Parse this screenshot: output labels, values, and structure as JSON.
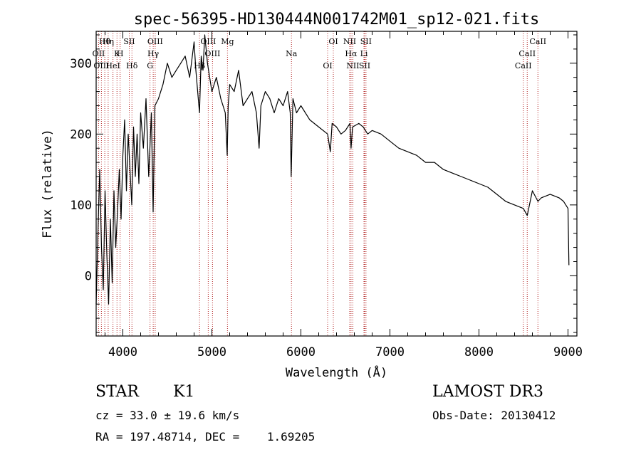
{
  "chart_data": {
    "type": "line",
    "title": "spec-56395-HD130444N001742M01_sp12-021.fits",
    "xlabel": "Wavelength (Å)",
    "ylabel": "Flux (relative)",
    "xlim": [
      3700,
      9100
    ],
    "ylim": [
      -85,
      345
    ],
    "xticks": [
      4000,
      5000,
      6000,
      7000,
      8000,
      9000
    ],
    "yticks": [
      0,
      100,
      200,
      300
    ],
    "series": [
      {
        "name": "flux",
        "x": [
          3700,
          3720,
          3740,
          3760,
          3780,
          3800,
          3820,
          3840,
          3860,
          3880,
          3900,
          3920,
          3940,
          3960,
          3980,
          4000,
          4020,
          4040,
          4060,
          4080,
          4100,
          4120,
          4140,
          4160,
          4180,
          4200,
          4230,
          4260,
          4290,
          4320,
          4340,
          4360,
          4400,
          4450,
          4500,
          4550,
          4600,
          4650,
          4700,
          4750,
          4800,
          4820,
          4861,
          4880,
          4900,
          4920,
          4950,
          5000,
          5050,
          5100,
          5150,
          5172,
          5183,
          5200,
          5250,
          5300,
          5350,
          5400,
          5450,
          5500,
          5530,
          5550,
          5600,
          5650,
          5700,
          5750,
          5800,
          5850,
          5880,
          5890,
          5896,
          5910,
          5950,
          6000,
          6100,
          6200,
          6300,
          6330,
          6350,
          6400,
          6450,
          6500,
          6550,
          6563,
          6580,
          6650,
          6700,
          6750,
          6800,
          6900,
          7000,
          7100,
          7200,
          7300,
          7400,
          7500,
          7600,
          7700,
          7800,
          7900,
          8000,
          8100,
          8200,
          8300,
          8400,
          8498,
          8542,
          8600,
          8662,
          8700,
          8800,
          8900,
          8950,
          9000,
          9010
        ],
        "values": [
          -40,
          60,
          150,
          40,
          -20,
          120,
          30,
          -40,
          80,
          -10,
          120,
          40,
          90,
          150,
          80,
          170,
          220,
          120,
          200,
          150,
          100,
          210,
          140,
          200,
          130,
          230,
          180,
          250,
          140,
          230,
          90,
          240,
          250,
          270,
          300,
          280,
          290,
          300,
          310,
          280,
          330,
          290,
          230,
          310,
          290,
          340,
          300,
          260,
          280,
          250,
          230,
          170,
          240,
          270,
          260,
          290,
          240,
          250,
          260,
          230,
          180,
          240,
          260,
          250,
          230,
          250,
          240,
          260,
          230,
          140,
          170,
          250,
          230,
          240,
          220,
          210,
          200,
          175,
          215,
          210,
          200,
          205,
          215,
          180,
          210,
          215,
          210,
          200,
          205,
          200,
          190,
          180,
          175,
          170,
          160,
          160,
          150,
          145,
          140,
          135,
          130,
          125,
          115,
          105,
          100,
          95,
          85,
          120,
          105,
          110,
          115,
          110,
          105,
          95,
          15
        ]
      }
    ],
    "annotations": [
      {
        "label": "Hθ",
        "wavelength": 3797
      },
      {
        "label": "OII",
        "wavelength": 3727
      },
      {
        "label": "OIII",
        "wavelength": 3759
      },
      {
        "label": "Hη",
        "wavelength": 3835
      },
      {
        "label": "K",
        "wavelength": 3934
      },
      {
        "label": "HeI",
        "wavelength": 3889
      },
      {
        "label": "SII",
        "wavelength": 4072
      },
      {
        "label": "H",
        "wavelength": 3969
      },
      {
        "label": "Hδ",
        "wavelength": 4102
      },
      {
        "label": "OIII",
        "wavelength": 4363
      },
      {
        "label": "Hγ",
        "wavelength": 4341
      },
      {
        "label": "G",
        "wavelength": 4305
      },
      {
        "label": "OIII",
        "wavelength": 4959
      },
      {
        "label": "OIII",
        "wavelength": 5007
      },
      {
        "label": "Hβ",
        "wavelength": 4861
      },
      {
        "label": "Mg",
        "wavelength": 5175
      },
      {
        "label": "Na",
        "wavelength": 5894
      },
      {
        "label": "OI",
        "wavelength": 6300
      },
      {
        "label": "OI",
        "wavelength": 6364
      },
      {
        "label": "Hα",
        "wavelength": 6563
      },
      {
        "label": "SII",
        "wavelength": 6716
      },
      {
        "label": "NII",
        "wavelength": 6548
      },
      {
        "label": "Li",
        "wavelength": 6708
      },
      {
        "label": "NII",
        "wavelength": 6583
      },
      {
        "label": "SII",
        "wavelength": 6731
      },
      {
        "label": "CaII",
        "wavelength": 8542
      },
      {
        "label": "CaII",
        "wavelength": 8498
      },
      {
        "label": "CaII",
        "wavelength": 8662
      }
    ]
  },
  "info": {
    "class_label": "STAR",
    "subclass": "K1",
    "survey": "LAMOST DR3",
    "redshift": "cz = 33.0 ± 19.6 km/s",
    "obs_date": "Obs-Date: 20130412",
    "coords": "RA = 197.48714, DEC =    1.69205"
  }
}
